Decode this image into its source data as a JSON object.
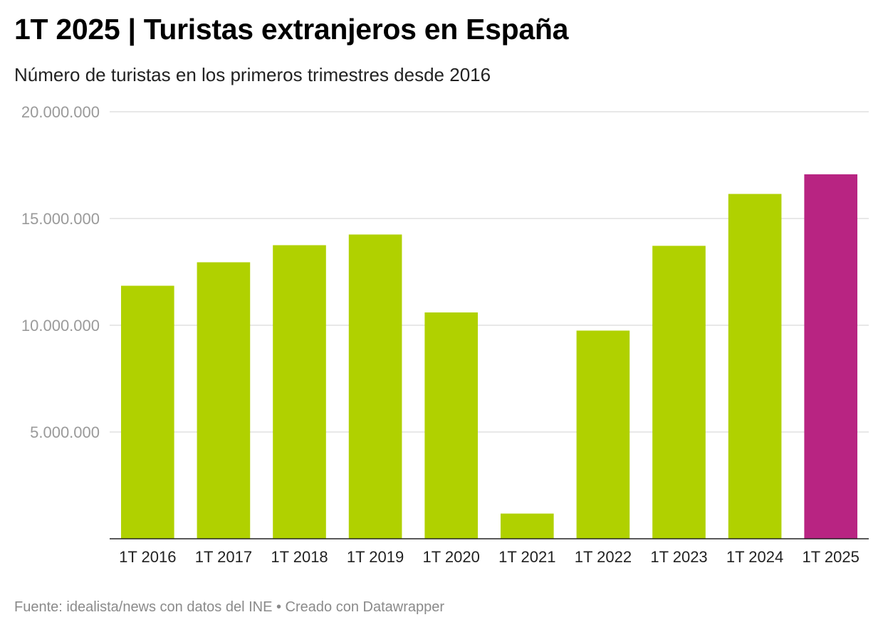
{
  "chart_data": {
    "type": "bar",
    "title": "1T 2025 | Turistas extranjeros en España",
    "subtitle": "Número de turistas en los primeros trimestres desde 2016",
    "categories": [
      "1T 2016",
      "1T 2017",
      "1T 2018",
      "1T 2019",
      "1T 2020",
      "1T 2021",
      "1T 2022",
      "1T 2023",
      "1T 2024",
      "1T 2025"
    ],
    "values": [
      11850000,
      12950000,
      13750000,
      14250000,
      10600000,
      1180000,
      9750000,
      13720000,
      16150000,
      17070000
    ],
    "ylim": [
      0,
      20000000
    ],
    "yticks": [
      5000000,
      10000000,
      15000000,
      20000000
    ],
    "ytick_labels": [
      "5.000.000",
      "10.000.000",
      "15.000.000",
      "20.000.000"
    ],
    "xlabel": "",
    "ylabel": "",
    "grid": true,
    "bar_color": "#b0d100",
    "highlight_color": "#b82482",
    "highlight_index": 9
  },
  "footer": {
    "source": "Fuente: idealista/news con datos del INE • Creado con Datawrapper"
  }
}
